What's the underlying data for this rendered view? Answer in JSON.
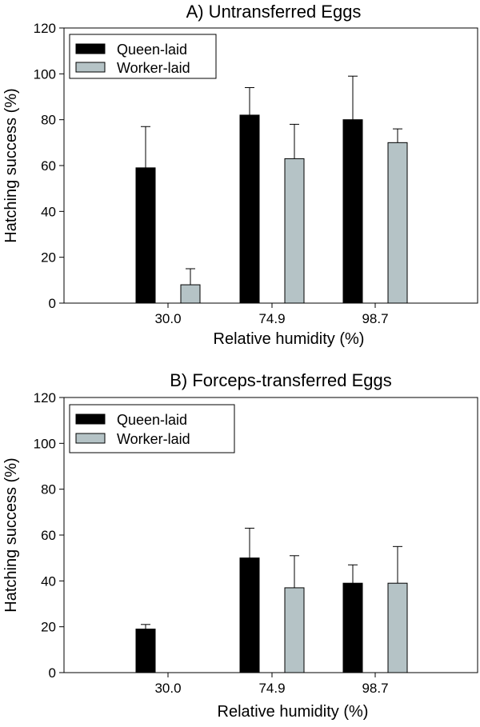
{
  "chart_data": [
    {
      "type": "bar",
      "title": "A) Untransferred Eggs",
      "xlabel": "Relative humidity (%)",
      "ylabel": "Hatching success (%)",
      "ylim": [
        0,
        120
      ],
      "yticks": [
        0,
        20,
        40,
        60,
        80,
        100,
        120
      ],
      "categories": [
        "30.0",
        "74.9",
        "98.7"
      ],
      "legend_position": "top-left",
      "series": [
        {
          "name": "Queen-laid",
          "color": "#000000",
          "values": [
            59,
            82,
            80
          ],
          "errors": [
            18,
            12,
            19
          ]
        },
        {
          "name": "Worker-laid",
          "color": "#b5c3c6",
          "values": [
            8,
            63,
            70
          ],
          "errors": [
            7,
            15,
            6
          ]
        }
      ]
    },
    {
      "type": "bar",
      "title": "B) Forceps-transferred Eggs",
      "xlabel": "Relative humidity (%)",
      "ylabel": "Hatching success (%)",
      "ylim": [
        0,
        120
      ],
      "yticks": [
        0,
        20,
        40,
        60,
        80,
        100,
        120
      ],
      "categories": [
        "30.0",
        "74.9",
        "98.7"
      ],
      "legend_position": "top-left",
      "series": [
        {
          "name": "Queen-laid",
          "color": "#000000",
          "values": [
            19,
            50,
            39
          ],
          "errors": [
            2,
            13,
            8
          ]
        },
        {
          "name": "Worker-laid",
          "color": "#b5c3c6",
          "values": [
            0,
            37,
            39
          ],
          "errors": [
            0,
            14,
            16
          ]
        }
      ]
    }
  ]
}
